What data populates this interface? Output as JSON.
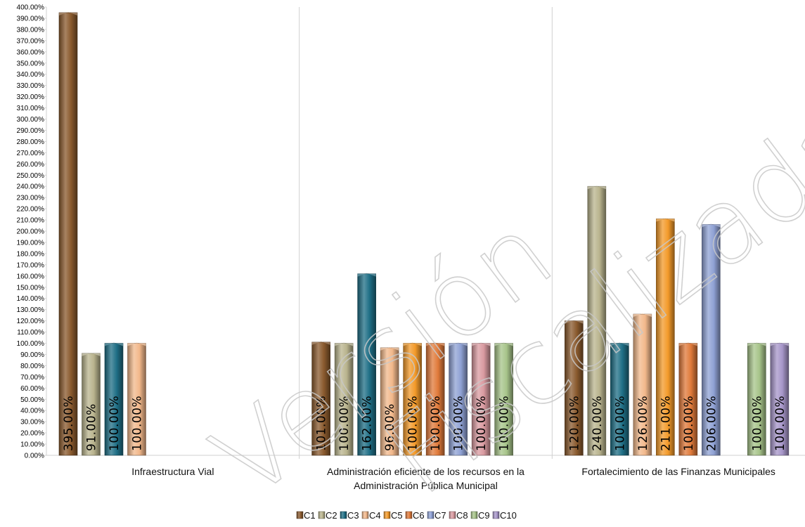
{
  "watermark": {
    "line1": "Versión",
    "line2": "Fiscalizada"
  },
  "chart_data": {
    "type": "bar",
    "title": "",
    "xlabel": "",
    "ylabel": "",
    "ylim": [
      0,
      400
    ],
    "ytick_step": 10,
    "grid": false,
    "legend_placement": "bottom",
    "categories": [
      "Infraestructura Vial",
      [
        "Administración eficiente de los recursos en la",
        "Administración Pública Municipal"
      ],
      "Fortalecimiento de las Finanzas Municipales"
    ],
    "series": [
      {
        "name": "C1",
        "color": "#8a5a2e",
        "values": [
          395,
          101,
          120
        ]
      },
      {
        "name": "C2",
        "color": "#b9b48e",
        "values": [
          91,
          100,
          240
        ]
      },
      {
        "name": "C3",
        "color": "#1f6f86",
        "values": [
          100,
          162,
          100
        ]
      },
      {
        "name": "C4",
        "color": "#f2b88b",
        "values": [
          100,
          96,
          126
        ]
      },
      {
        "name": "C5",
        "color": "#f39a2a",
        "values": [
          null,
          100,
          211
        ]
      },
      {
        "name": "C6",
        "color": "#e07a3a",
        "values": [
          null,
          100,
          100
        ]
      },
      {
        "name": "C7",
        "color": "#8fa1d4",
        "values": [
          null,
          100,
          206
        ]
      },
      {
        "name": "C8",
        "color": "#d99aa0",
        "values": [
          null,
          100,
          null
        ]
      },
      {
        "name": "C9",
        "color": "#a7c48a",
        "values": [
          null,
          100,
          100
        ]
      },
      {
        "name": "C10",
        "color": "#a796c9",
        "values": [
          null,
          null,
          100
        ]
      }
    ],
    "data_labels": [
      [
        "395.00%",
        "91.00%",
        "100.00%",
        "100.00%",
        null,
        null,
        null,
        null,
        null,
        null
      ],
      [
        "101.00%",
        "100.00%",
        "162.00%",
        "96.00%",
        "100.00%",
        "100.00%",
        "100.00%",
        "100.00%",
        "100.00%",
        null
      ],
      [
        "120.00%",
        "240.00%",
        "100.00%",
        "126.00%",
        "211.00%",
        "100.00%",
        "206.00%",
        null,
        "100.00%",
        "100.00%"
      ]
    ]
  }
}
